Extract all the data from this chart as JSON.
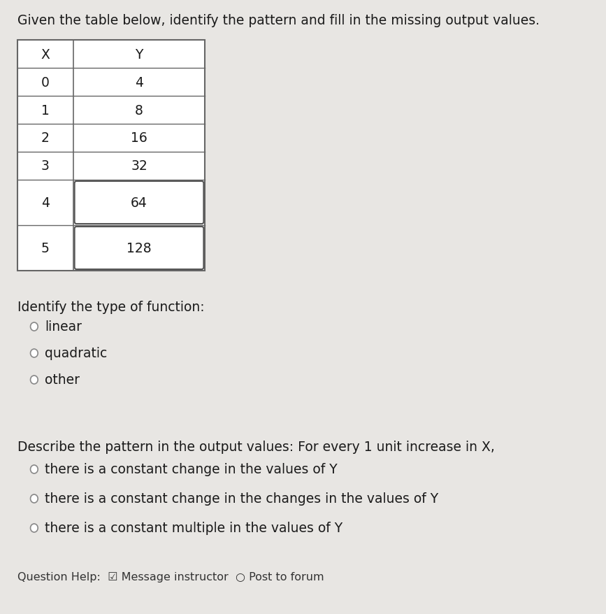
{
  "title": "Given the table below, identify the pattern and fill in the missing output values.",
  "table_headers": [
    "X",
    "Y"
  ],
  "table_rows": [
    {
      "x": "0",
      "y": "4",
      "highlighted": false
    },
    {
      "x": "1",
      "y": "8",
      "highlighted": false
    },
    {
      "x": "2",
      "y": "16",
      "highlighted": false
    },
    {
      "x": "3",
      "y": "32",
      "highlighted": false
    },
    {
      "x": "4",
      "y": "64",
      "highlighted": true
    },
    {
      "x": "5",
      "y": "128",
      "highlighted": true
    }
  ],
  "section1_label": "Identify the type of function:",
  "options1": [
    "linear",
    "quadratic",
    "other"
  ],
  "section2_label": "Describe the pattern in the output values: For every 1 unit increase in X,",
  "options2": [
    "there is a constant change in the values of Y",
    "there is a constant change in the changes in the values of Y",
    "there is a constant multiple in the values of Y"
  ],
  "footer": "Question Help:  ☑ Message instructor  ○ Post to forum",
  "bg_color": "#e8e6e3",
  "table_bg": "#ffffff",
  "text_color": "#1a1a1a",
  "line_color": "#666666",
  "title_fontsize": 13.5,
  "body_fontsize": 13.5,
  "small_fontsize": 11.5
}
